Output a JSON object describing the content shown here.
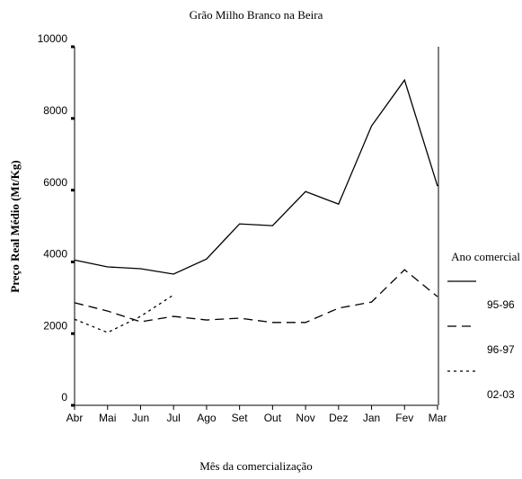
{
  "chart_data": {
    "type": "line",
    "title": "Grão Milho Branco na Beira",
    "x_label": "Mês da comercialização",
    "y_label": "Preço Real Médio (Mt/Kg)",
    "legend_title": "Ano comercial",
    "legend": "right",
    "categories": [
      "Abr",
      "Mai",
      "Jun",
      "Jul",
      "Ago",
      "Set",
      "Out",
      "Nov",
      "Dez",
      "Jan",
      "Fev",
      "Mar"
    ],
    "series": [
      {
        "name": "95-96",
        "color": "#000000",
        "dash": "solid",
        "values": [
          4050,
          3860,
          3810,
          3660,
          4080,
          5060,
          5010,
          5960,
          5610,
          7790,
          9070,
          6110
        ]
      },
      {
        "name": "96-97",
        "color": "#000000",
        "dash": "dashed",
        "values": [
          2860,
          2630,
          2330,
          2480,
          2380,
          2430,
          2310,
          2310,
          2710,
          2880,
          3780,
          3030
        ]
      },
      {
        "name": "02-03",
        "color": "#000000",
        "dash": "dotted",
        "values": [
          2400,
          2030,
          2480,
          3080,
          null,
          null,
          null,
          null,
          null,
          null,
          null,
          null
        ]
      }
    ],
    "ylim": [
      0,
      10000
    ],
    "yticks": [
      0,
      2000,
      4000,
      6000,
      8000,
      10000
    ]
  }
}
